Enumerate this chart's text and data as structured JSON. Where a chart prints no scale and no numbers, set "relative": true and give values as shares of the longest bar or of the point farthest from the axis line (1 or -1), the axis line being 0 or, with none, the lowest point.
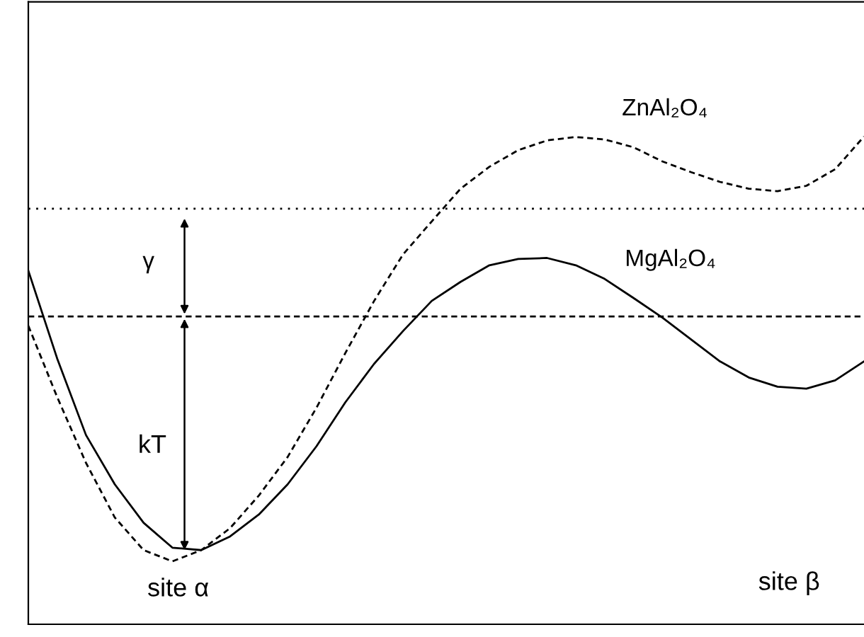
{
  "chart_data": {
    "type": "line",
    "relative": true,
    "categories": [
      null,
      null,
      null,
      null,
      null,
      null,
      null,
      null,
      null,
      null,
      null,
      null,
      null,
      null,
      null,
      null,
      null,
      null,
      null,
      null,
      null,
      null,
      null,
      null,
      null,
      null,
      null,
      null,
      null,
      null
    ],
    "series": [
      {
        "name": "ZnAl₂O₄",
        "color": "#000000",
        "line_style": "dashed",
        "values": [
          0.612,
          0.466,
          0.331,
          0.219,
          0.152,
          0.129,
          0.152,
          0.197,
          0.264,
          0.343,
          0.444,
          0.556,
          0.663,
          0.758,
          0.826,
          0.893,
          0.938,
          0.972,
          0.992,
          0.999,
          0.994,
          0.978,
          0.949,
          0.927,
          0.907,
          0.893,
          0.888,
          0.899,
          0.933,
          1
        ]
      },
      {
        "name": "MgAl₂O₄",
        "color": "#000000",
        "line_style": "solid",
        "values": [
          0.725,
          0.545,
          0.388,
          0.287,
          0.208,
          0.157,
          0.152,
          0.18,
          0.225,
          0.287,
          0.365,
          0.455,
          0.534,
          0.601,
          0.663,
          0.702,
          0.736,
          0.749,
          0.751,
          0.736,
          0.708,
          0.669,
          0.629,
          0.584,
          0.539,
          0.506,
          0.487,
          0.483,
          0.5,
          0.539
        ]
      }
    ],
    "ref_lines": [
      {
        "axis": "y",
        "value": 0.852,
        "color": "#000000",
        "line_style": "dotted"
      },
      {
        "axis": "y",
        "value": 0.631,
        "color": "#000000",
        "line_style": "dashed"
      }
    ],
    "annotations": [
      "γ",
      "kT",
      "site α",
      "site β"
    ],
    "legend": false,
    "marker": "none"
  }
}
